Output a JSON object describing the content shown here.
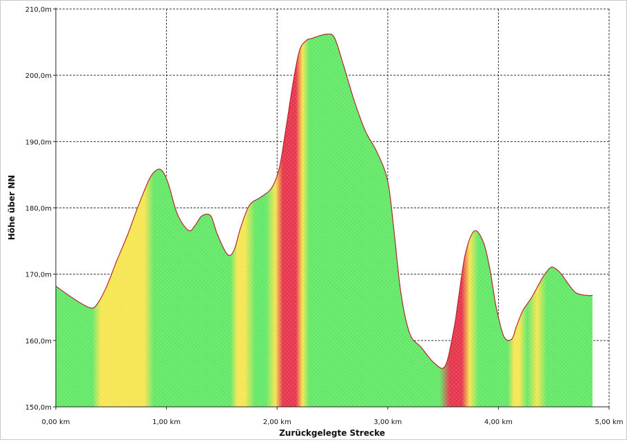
{
  "chart_data": {
    "type": "area",
    "xlabel": "Zurückgelegte Strecke",
    "ylabel": "Höhe über NN",
    "xlim": [
      0,
      5
    ],
    "ylim": [
      150,
      210
    ],
    "grid": true,
    "x_ticks": [
      {
        "value": 0,
        "label": "0,00 km"
      },
      {
        "value": 1,
        "label": "1,00 km"
      },
      {
        "value": 2,
        "label": "2,00 km"
      },
      {
        "value": 3,
        "label": "3,00 km"
      },
      {
        "value": 4,
        "label": "4,00 km"
      },
      {
        "value": 5,
        "label": "5,00 km"
      }
    ],
    "y_ticks": [
      {
        "value": 150,
        "label": "150,0m"
      },
      {
        "value": 160,
        "label": "160,0m"
      },
      {
        "value": 170,
        "label": "170,0m"
      },
      {
        "value": 180,
        "label": "180,0m"
      },
      {
        "value": 190,
        "label": "190,0m"
      },
      {
        "value": 200,
        "label": "200,0m"
      },
      {
        "value": 210,
        "label": "210,0m"
      }
    ],
    "series": [
      {
        "x": [
          0.0,
          0.1,
          0.2,
          0.3,
          0.36,
          0.45,
          0.55,
          0.65,
          0.75,
          0.85,
          0.92,
          0.97,
          1.02,
          1.1,
          1.2,
          1.26,
          1.32,
          1.4,
          1.46,
          1.55,
          1.61,
          1.67,
          1.75,
          1.85,
          1.95,
          2.02,
          2.08,
          2.14,
          2.2,
          2.26,
          2.32,
          2.45,
          2.52,
          2.6,
          2.7,
          2.8,
          2.9,
          3.0,
          3.06,
          3.12,
          3.2,
          3.3,
          3.42,
          3.52,
          3.6,
          3.64,
          3.7,
          3.78,
          3.86,
          3.92,
          3.98,
          4.05,
          4.12,
          4.16,
          4.22,
          4.3,
          4.4,
          4.47,
          4.52,
          4.57,
          4.62,
          4.7,
          4.8,
          4.85
        ],
        "elevation": [
          168.2,
          167.0,
          165.9,
          165.0,
          165.2,
          167.8,
          172.0,
          176.0,
          180.5,
          184.5,
          185.8,
          185.4,
          183.5,
          179.0,
          176.6,
          177.4,
          178.8,
          178.8,
          176.0,
          173.0,
          173.6,
          177.0,
          180.4,
          181.6,
          183.0,
          186.0,
          192.0,
          198.5,
          203.6,
          205.2,
          205.6,
          206.2,
          205.6,
          201.5,
          196.0,
          191.5,
          188.5,
          184.0,
          176.0,
          167.0,
          161.0,
          159.0,
          156.6,
          156.2,
          162.0,
          166.5,
          173.0,
          176.5,
          175.0,
          171.0,
          165.0,
          160.6,
          160.2,
          162.0,
          164.5,
          166.5,
          169.5,
          171.0,
          170.8,
          170.0,
          168.8,
          167.2,
          166.8,
          166.8
        ],
        "colors": [
          "#f5e654",
          "#66e86a",
          "#e6394f"
        ]
      }
    ]
  }
}
